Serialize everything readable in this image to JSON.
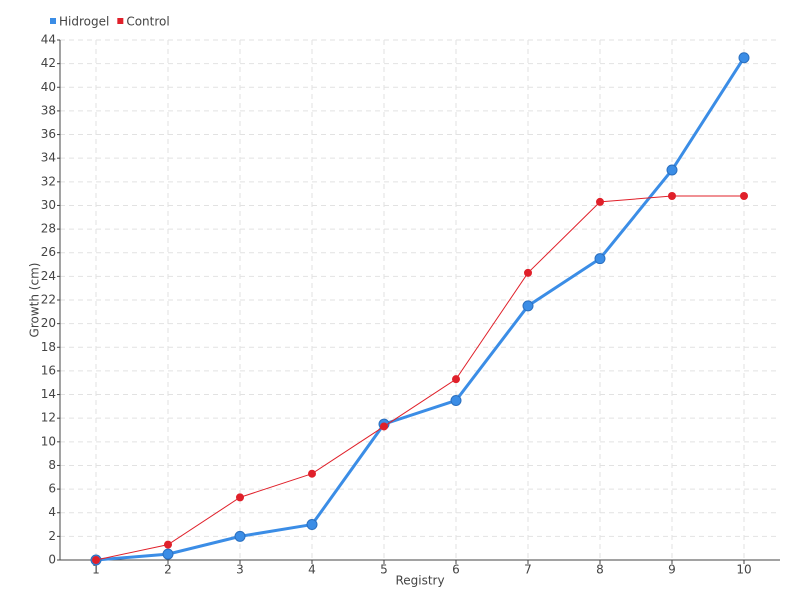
{
  "chart_data": {
    "type": "line",
    "x_label": "Registry",
    "y_label": "Growth (cm)",
    "categories": [
      "1",
      "2",
      "3",
      "4",
      "5",
      "6",
      "7",
      "8",
      "9",
      "10"
    ],
    "series": [
      {
        "name": "Hidrogel",
        "color": "#3b8de6",
        "values": [
          0,
          0.5,
          2,
          3,
          11.5,
          13.5,
          21.5,
          25.5,
          33,
          42.5
        ]
      },
      {
        "name": "Control",
        "color": "#e0202a",
        "values": [
          0,
          1.3,
          5.3,
          7.3,
          11.3,
          15.3,
          24.3,
          30.3,
          30.8,
          30.8
        ]
      }
    ],
    "ylim": [
      0,
      44
    ],
    "yticks": [
      0,
      2,
      4,
      6,
      8,
      10,
      12,
      14,
      16,
      18,
      20,
      22,
      24,
      26,
      28,
      30,
      32,
      34,
      36,
      38,
      40,
      42,
      44
    ],
    "grid": true,
    "legend": "top-left"
  }
}
